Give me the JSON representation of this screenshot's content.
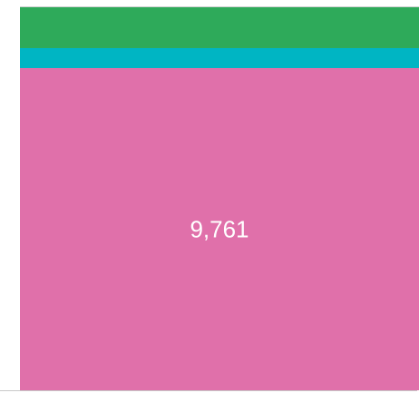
{
  "chart_data": {
    "type": "bar",
    "stacked": true,
    "categories": [
      null
    ],
    "series": [
      {
        "color": "#e070aa",
        "values": [
          9761
        ],
        "value_labels": [
          "9,761"
        ]
      },
      {
        "color": "#00b5c3",
        "values": [
          605
        ]
      },
      {
        "color": "#2eaa5a",
        "values": [
          1237
        ]
      }
    ],
    "ylim": [
      0,
      11603
    ]
  }
}
